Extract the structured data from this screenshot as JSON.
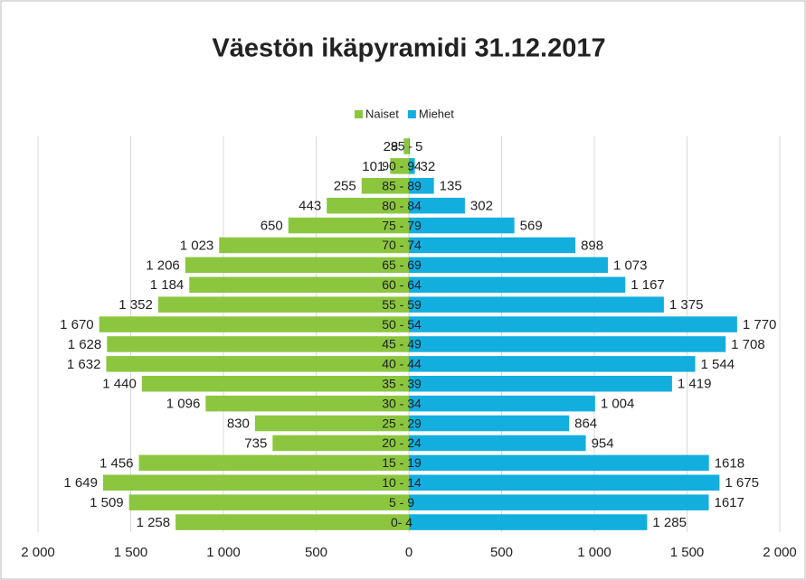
{
  "chart_data": {
    "type": "bar",
    "orientation": "pyramid",
    "title": "Väestön ikäpyramidi 31.12.2017",
    "categories": [
      "95 -",
      "90 - 94",
      "85 - 89",
      "80 - 84",
      "75 - 79",
      "70 - 74",
      "65 - 69",
      "60 - 64",
      "55 - 59",
      "50 - 54",
      "45 - 49",
      "40 - 44",
      "35 - 39",
      "30 - 34",
      "25 - 29",
      "20 - 24",
      "15 - 19",
      "10 - 14",
      "5 - 9",
      "0- 4"
    ],
    "series": [
      {
        "name": "Naiset",
        "color": "#8cc63f",
        "side": "left",
        "values": [
          28,
          101,
          255,
          443,
          650,
          1023,
          1206,
          1184,
          1352,
          1670,
          1628,
          1632,
          1440,
          1096,
          830,
          735,
          1456,
          1649,
          1509,
          1258
        ],
        "value_labels": [
          "28",
          "101",
          "255",
          "443",
          "650",
          "1 023",
          "1 206",
          "1 184",
          "1 352",
          "1 670",
          "1 628",
          "1 632",
          "1 440",
          "1 096",
          "830",
          "735",
          "1 456",
          "1 649",
          "1 509",
          "1 258"
        ]
      },
      {
        "name": "Miehet",
        "color": "#12aede",
        "side": "right",
        "values": [
          5,
          32,
          135,
          302,
          569,
          898,
          1073,
          1167,
          1375,
          1770,
          1708,
          1544,
          1419,
          1004,
          864,
          954,
          1618,
          1675,
          1617,
          1285
        ],
        "value_labels": [
          "5",
          "32",
          "135",
          "302",
          "569",
          "898",
          "1 073",
          "1 167",
          "1 375",
          "1 770",
          "1 708",
          "1 544",
          "1 419",
          "1 004",
          "864",
          "954",
          "1618",
          "1 675",
          "1617",
          "1 285"
        ]
      }
    ],
    "xlim": [
      -2000,
      2000
    ],
    "xticks": [
      {
        "value": -2000,
        "label": "2 000"
      },
      {
        "value": -1500,
        "label": "1 500"
      },
      {
        "value": -1000,
        "label": "1 000"
      },
      {
        "value": -500,
        "label": "500"
      },
      0,
      500,
      {
        "value": 1000,
        "label": "1 000"
      },
      {
        "value": 1500,
        "label": "1 500"
      },
      {
        "value": 2000,
        "label": "2 000"
      }
    ],
    "grid": true,
    "legend": "top"
  }
}
